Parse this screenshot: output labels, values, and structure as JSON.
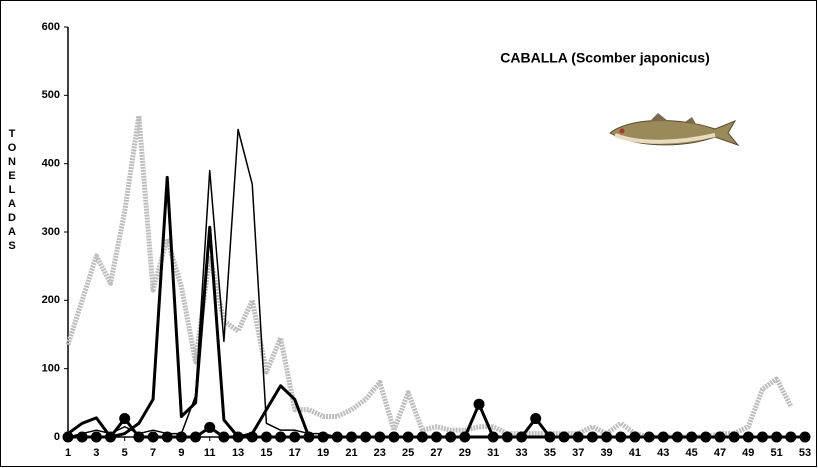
{
  "chart_data": {
    "type": "line",
    "title": "CABALLA (Scomber japonicus)",
    "y_label": "TONELADAS",
    "x": [
      1,
      2,
      3,
      4,
      5,
      6,
      7,
      8,
      9,
      10,
      11,
      12,
      13,
      14,
      15,
      16,
      17,
      18,
      19,
      20,
      21,
      22,
      23,
      24,
      25,
      26,
      27,
      28,
      29,
      30,
      31,
      32,
      33,
      34,
      35,
      36,
      37,
      38,
      39,
      40,
      41,
      42,
      43,
      44,
      45,
      46,
      47,
      48,
      49,
      50,
      51,
      52,
      53
    ],
    "xlim": [
      1,
      53
    ],
    "xticks": [
      1,
      3,
      5,
      7,
      9,
      11,
      13,
      15,
      17,
      19,
      21,
      23,
      25,
      27,
      29,
      31,
      33,
      35,
      37,
      39,
      41,
      43,
      45,
      47,
      49,
      51,
      53
    ],
    "ylim": [
      0,
      600
    ],
    "yticks": [
      0,
      100,
      200,
      300,
      400,
      500,
      600
    ],
    "grid": false,
    "series": [
      {
        "color": "#bdbdbd",
        "values": [
          135,
          200,
          265,
          225,
          330,
          470,
          215,
          290,
          220,
          110,
          265,
          170,
          155,
          200,
          95,
          145,
          40,
          40,
          30,
          30,
          40,
          55,
          80,
          10,
          65,
          10,
          15,
          10,
          10,
          15,
          15,
          5,
          5,
          5,
          5,
          5,
          5,
          15,
          5,
          20,
          5,
          0,
          0,
          0,
          0,
          0,
          5,
          5,
          15,
          70,
          85,
          45,
          null
        ]
      },
      {
        "color": "#000000",
        "values": [
          0,
          5,
          10,
          5,
          15,
          5,
          10,
          5,
          5,
          60,
          390,
          140,
          450,
          370,
          20,
          10,
          10,
          5,
          5,
          0,
          0,
          0,
          0,
          0,
          0,
          0,
          0,
          0,
          0,
          0,
          0,
          0,
          0,
          0,
          0,
          0,
          0,
          0,
          0,
          0,
          0,
          0,
          0,
          0,
          0,
          0,
          0,
          0,
          0,
          0,
          0,
          0,
          0
        ]
      },
      {
        "color": "#000000",
        "values": [
          5,
          20,
          28,
          0,
          5,
          20,
          55,
          380,
          30,
          50,
          307,
          25,
          0,
          5,
          40,
          75,
          55,
          0,
          0,
          0,
          0,
          0,
          0,
          0,
          0,
          0,
          0,
          0,
          0,
          0,
          0,
          0,
          0,
          0,
          0,
          0,
          0,
          0,
          0,
          0,
          0,
          0,
          0,
          0,
          0,
          0,
          0,
          0,
          0,
          0,
          0,
          0,
          0
        ]
      },
      {
        "color": "#000000",
        "values": [
          0,
          0,
          0,
          0,
          27,
          0,
          0,
          0,
          0,
          0,
          14,
          0,
          0,
          0,
          0,
          0,
          0,
          0,
          0,
          0,
          0,
          0,
          0,
          0,
          0,
          0,
          0,
          0,
          0,
          48,
          0,
          0,
          0,
          27,
          0,
          0,
          0,
          0,
          0,
          0,
          0,
          0,
          0,
          0,
          0,
          0,
          0,
          0,
          0,
          0,
          0,
          0,
          0
        ]
      }
    ]
  }
}
